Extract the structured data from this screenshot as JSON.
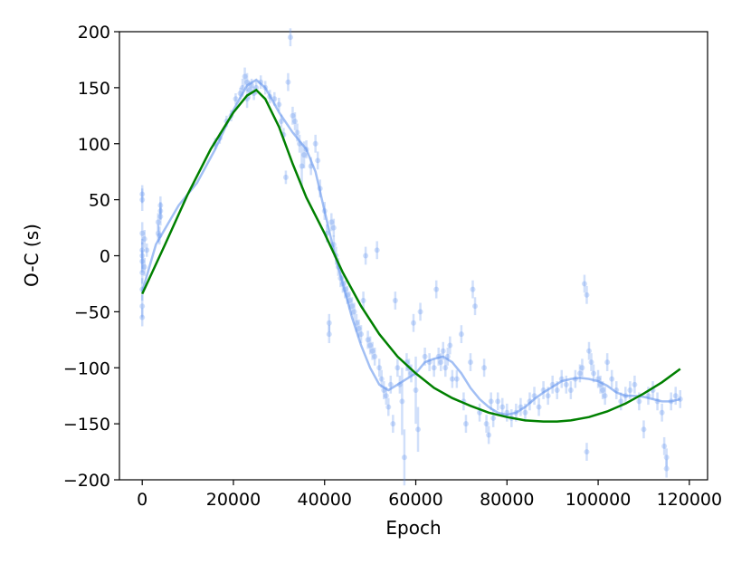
{
  "chart_data": {
    "type": "scatter",
    "xlabel": "Epoch",
    "ylabel": "O-C (s)",
    "xlim": [
      -5000,
      124000
    ],
    "ylim": [
      -200,
      200
    ],
    "xticks": [
      0,
      20000,
      40000,
      60000,
      80000,
      100000,
      120000
    ],
    "xtick_labels": [
      "0",
      "20000",
      "40000",
      "60000",
      "80000",
      "100000",
      "120000"
    ],
    "yticks": [
      -200,
      -150,
      -100,
      -50,
      0,
      50,
      100,
      150,
      200
    ],
    "ytick_labels": [
      "−200",
      "−150",
      "−100",
      "−50",
      "0",
      "50",
      "100",
      "150",
      "200"
    ],
    "grid": false,
    "legend": "none",
    "colors": {
      "points": "#6495ed",
      "smooth_curve": "#6495ed",
      "model_curve": "#008000"
    },
    "points": [
      [
        0,
        5,
        10
      ],
      [
        0,
        -5,
        10
      ],
      [
        0,
        -15,
        10
      ],
      [
        0,
        -30,
        10
      ],
      [
        0,
        -45,
        10
      ],
      [
        0,
        -55,
        8
      ],
      [
        0,
        20,
        10
      ],
      [
        0,
        50,
        10
      ],
      [
        0,
        55,
        8
      ],
      [
        0,
        0,
        12
      ],
      [
        500,
        -10,
        8
      ],
      [
        500,
        15,
        8
      ],
      [
        1000,
        5,
        6
      ],
      [
        3500,
        20,
        8
      ],
      [
        3500,
        30,
        8
      ],
      [
        4000,
        40,
        8
      ],
      [
        4000,
        45,
        8
      ],
      [
        4000,
        35,
        8
      ],
      [
        3800,
        18,
        8
      ],
      [
        16000,
        100,
        5
      ],
      [
        17000,
        105,
        5
      ],
      [
        18500,
        120,
        5
      ],
      [
        19500,
        125,
        5
      ],
      [
        20500,
        140,
        5
      ],
      [
        21500,
        145,
        5
      ],
      [
        22000,
        150,
        8
      ],
      [
        22500,
        160,
        8
      ],
      [
        23000,
        155,
        8
      ],
      [
        23000,
        140,
        8
      ],
      [
        23500,
        148,
        8
      ],
      [
        24000,
        152,
        6
      ],
      [
        24500,
        145,
        6
      ],
      [
        25000,
        150,
        6
      ],
      [
        26000,
        155,
        6
      ],
      [
        27000,
        150,
        6
      ],
      [
        28000,
        142,
        6
      ],
      [
        29000,
        140,
        6
      ],
      [
        30000,
        135,
        6
      ],
      [
        30500,
        120,
        6
      ],
      [
        31000,
        108,
        6
      ],
      [
        31500,
        70,
        6
      ],
      [
        32000,
        155,
        8
      ],
      [
        32500,
        195,
        8
      ],
      [
        33000,
        125,
        8
      ],
      [
        33500,
        120,
        8
      ],
      [
        34000,
        110,
        8
      ],
      [
        34500,
        100,
        8
      ],
      [
        35000,
        80,
        20
      ],
      [
        35500,
        90,
        12
      ],
      [
        36000,
        95,
        8
      ],
      [
        37000,
        80,
        8
      ],
      [
        38000,
        100,
        8
      ],
      [
        38500,
        85,
        8
      ],
      [
        39000,
        60,
        8
      ],
      [
        40000,
        40,
        8
      ],
      [
        40500,
        20,
        8
      ],
      [
        41000,
        -60,
        8
      ],
      [
        41000,
        -70,
        8
      ],
      [
        41500,
        30,
        8
      ],
      [
        42000,
        25,
        8
      ],
      [
        42000,
        10,
        8
      ],
      [
        42500,
        0,
        8
      ],
      [
        43000,
        -10,
        8
      ],
      [
        43500,
        -20,
        8
      ],
      [
        44000,
        -25,
        8
      ],
      [
        44500,
        -30,
        8
      ],
      [
        45000,
        -35,
        8
      ],
      [
        45500,
        -40,
        8
      ],
      [
        46000,
        -45,
        8
      ],
      [
        46500,
        -50,
        8
      ],
      [
        47000,
        -60,
        8
      ],
      [
        47500,
        -65,
        8
      ],
      [
        48000,
        -70,
        8
      ],
      [
        48500,
        -40,
        8
      ],
      [
        49000,
        0,
        8
      ],
      [
        49500,
        -75,
        8
      ],
      [
        50000,
        -80,
        8
      ],
      [
        50500,
        -85,
        8
      ],
      [
        51000,
        -90,
        8
      ],
      [
        51500,
        5,
        8
      ],
      [
        52000,
        -100,
        8
      ],
      [
        52500,
        -110,
        8
      ],
      [
        53000,
        -120,
        8
      ],
      [
        53500,
        -125,
        8
      ],
      [
        54000,
        -135,
        8
      ],
      [
        54500,
        -115,
        8
      ],
      [
        55000,
        -150,
        8
      ],
      [
        55500,
        -40,
        8
      ],
      [
        56000,
        -100,
        8
      ],
      [
        56500,
        -115,
        8
      ],
      [
        57000,
        -130,
        30
      ],
      [
        57500,
        -180,
        25
      ],
      [
        58000,
        -95,
        8
      ],
      [
        58500,
        -100,
        8
      ],
      [
        59000,
        -105,
        8
      ],
      [
        59500,
        -60,
        8
      ],
      [
        60000,
        -120,
        30
      ],
      [
        60500,
        -155,
        20
      ],
      [
        61000,
        -50,
        8
      ],
      [
        62000,
        -90,
        8
      ],
      [
        63000,
        -95,
        8
      ],
      [
        64000,
        -100,
        8
      ],
      [
        64500,
        -30,
        8
      ],
      [
        65000,
        -90,
        8
      ],
      [
        65500,
        -95,
        8
      ],
      [
        66000,
        -85,
        8
      ],
      [
        66500,
        -100,
        8
      ],
      [
        67000,
        -90,
        8
      ],
      [
        67500,
        -80,
        8
      ],
      [
        68000,
        -110,
        8
      ],
      [
        69000,
        -110,
        8
      ],
      [
        70000,
        -70,
        8
      ],
      [
        70500,
        -130,
        8
      ],
      [
        71000,
        -150,
        8
      ],
      [
        72000,
        -95,
        8
      ],
      [
        72500,
        -30,
        8
      ],
      [
        73000,
        -45,
        8
      ],
      [
        74000,
        -140,
        8
      ],
      [
        75000,
        -100,
        8
      ],
      [
        75500,
        -150,
        8
      ],
      [
        76000,
        -160,
        8
      ],
      [
        76500,
        -130,
        8
      ],
      [
        77000,
        -145,
        8
      ],
      [
        78000,
        -130,
        8
      ],
      [
        79000,
        -135,
        8
      ],
      [
        80000,
        -140,
        8
      ],
      [
        81000,
        -145,
        8
      ],
      [
        82000,
        -140,
        8
      ],
      [
        83000,
        -135,
        8
      ],
      [
        84000,
        -140,
        8
      ],
      [
        85000,
        -130,
        8
      ],
      [
        86000,
        -125,
        8
      ],
      [
        87000,
        -135,
        8
      ],
      [
        88000,
        -120,
        8
      ],
      [
        89000,
        -125,
        8
      ],
      [
        90000,
        -115,
        8
      ],
      [
        91000,
        -120,
        8
      ],
      [
        92000,
        -110,
        8
      ],
      [
        93000,
        -115,
        8
      ],
      [
        94000,
        -120,
        8
      ],
      [
        95000,
        -110,
        8
      ],
      [
        96000,
        -105,
        8
      ],
      [
        96500,
        -100,
        8
      ],
      [
        97000,
        -25,
        8
      ],
      [
        97500,
        -35,
        8
      ],
      [
        97500,
        -175,
        8
      ],
      [
        98000,
        -85,
        8
      ],
      [
        98500,
        -95,
        8
      ],
      [
        99000,
        -105,
        8
      ],
      [
        100000,
        -110,
        8
      ],
      [
        100500,
        -115,
        8
      ],
      [
        101000,
        -120,
        8
      ],
      [
        101500,
        -125,
        8
      ],
      [
        102000,
        -95,
        8
      ],
      [
        103000,
        -110,
        8
      ],
      [
        104000,
        -120,
        8
      ],
      [
        105000,
        -130,
        8
      ],
      [
        106000,
        -125,
        8
      ],
      [
        107000,
        -120,
        8
      ],
      [
        108000,
        -115,
        8
      ],
      [
        109000,
        -130,
        8
      ],
      [
        110000,
        -155,
        8
      ],
      [
        111000,
        -125,
        8
      ],
      [
        112000,
        -120,
        8
      ],
      [
        113000,
        -130,
        8
      ],
      [
        114000,
        -140,
        8
      ],
      [
        114500,
        -170,
        8
      ],
      [
        115000,
        -180,
        8
      ],
      [
        115000,
        -190,
        8
      ],
      [
        116000,
        -130,
        8
      ],
      [
        117000,
        -125,
        8
      ],
      [
        118000,
        -128,
        8
      ]
    ],
    "smooth_curve": [
      [
        0,
        -32
      ],
      [
        3000,
        10
      ],
      [
        8000,
        45
      ],
      [
        12000,
        65
      ],
      [
        16000,
        95
      ],
      [
        20000,
        130
      ],
      [
        23000,
        152
      ],
      [
        25000,
        157
      ],
      [
        27000,
        150
      ],
      [
        30000,
        128
      ],
      [
        33000,
        110
      ],
      [
        36000,
        95
      ],
      [
        38000,
        75
      ],
      [
        40000,
        40
      ],
      [
        42000,
        5
      ],
      [
        44000,
        -25
      ],
      [
        46000,
        -55
      ],
      [
        48000,
        -80
      ],
      [
        50000,
        -100
      ],
      [
        52000,
        -115
      ],
      [
        54000,
        -120
      ],
      [
        56000,
        -115
      ],
      [
        58000,
        -110
      ],
      [
        60000,
        -105
      ],
      [
        62000,
        -95
      ],
      [
        64000,
        -92
      ],
      [
        66000,
        -90
      ],
      [
        68000,
        -95
      ],
      [
        70000,
        -105
      ],
      [
        72000,
        -118
      ],
      [
        74000,
        -128
      ],
      [
        76000,
        -135
      ],
      [
        78000,
        -140
      ],
      [
        80000,
        -142
      ],
      [
        82000,
        -140
      ],
      [
        84000,
        -135
      ],
      [
        86000,
        -128
      ],
      [
        88000,
        -122
      ],
      [
        90000,
        -117
      ],
      [
        92000,
        -112
      ],
      [
        94000,
        -110
      ],
      [
        96000,
        -109
      ],
      [
        98000,
        -110
      ],
      [
        100000,
        -112
      ],
      [
        102000,
        -116
      ],
      [
        104000,
        -122
      ],
      [
        106000,
        -125
      ],
      [
        108000,
        -125
      ],
      [
        110000,
        -126
      ],
      [
        112000,
        -128
      ],
      [
        114000,
        -130
      ],
      [
        116000,
        -130
      ],
      [
        118000,
        -128
      ]
    ],
    "model_curve": [
      [
        0,
        -34
      ],
      [
        5000,
        10
      ],
      [
        10000,
        55
      ],
      [
        15000,
        95
      ],
      [
        20000,
        128
      ],
      [
        23000,
        143
      ],
      [
        25000,
        148
      ],
      [
        27000,
        140
      ],
      [
        30000,
        115
      ],
      [
        33000,
        82
      ],
      [
        36000,
        52
      ],
      [
        40000,
        20
      ],
      [
        44000,
        -15
      ],
      [
        48000,
        -45
      ],
      [
        52000,
        -70
      ],
      [
        56000,
        -90
      ],
      [
        60000,
        -105
      ],
      [
        64000,
        -118
      ],
      [
        68000,
        -127
      ],
      [
        72000,
        -134
      ],
      [
        76000,
        -140
      ],
      [
        80000,
        -144
      ],
      [
        84000,
        -147
      ],
      [
        88000,
        -148
      ],
      [
        91000,
        -148
      ],
      [
        94000,
        -147
      ],
      [
        98000,
        -144
      ],
      [
        102000,
        -139
      ],
      [
        106000,
        -132
      ],
      [
        110000,
        -123
      ],
      [
        114000,
        -113
      ],
      [
        118000,
        -101
      ]
    ]
  }
}
